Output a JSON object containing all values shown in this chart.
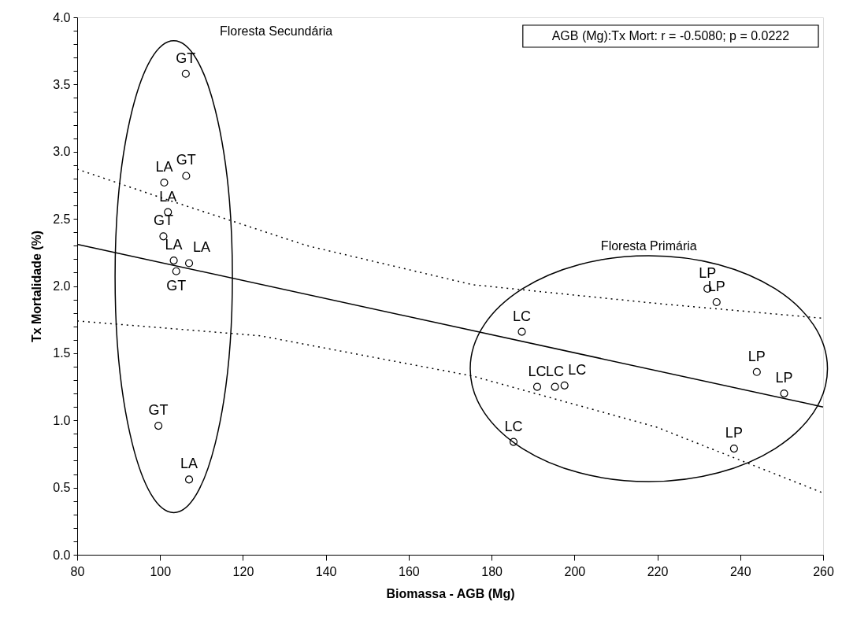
{
  "chart_data": {
    "type": "scatter",
    "xlabel": "Biomassa - AGB (Mg)",
    "ylabel": "Tx Mortalidade (%)",
    "annotations": [
      "Floresta Secundária",
      "Floresta Primária",
      "AGB (Mg):Tx Mort:   r = -0.5080; p = 0.0222"
    ],
    "xlim": [
      80,
      260
    ],
    "xticks": [
      80,
      100,
      120,
      140,
      160,
      180,
      200,
      220,
      240,
      260
    ],
    "ylim": [
      0,
      4
    ],
    "yticks": [
      {
        "value": 0,
        "label": "0.0"
      },
      {
        "value": 0.1,
        "label": null
      },
      {
        "value": 0.2,
        "label": null
      },
      {
        "value": 0.3,
        "label": null
      },
      {
        "value": 0.4,
        "label": null
      },
      {
        "value": 0.5,
        "label": "0.5"
      },
      {
        "value": 0.6,
        "label": null
      },
      {
        "value": 0.7,
        "label": null
      },
      {
        "value": 0.8,
        "label": null
      },
      {
        "value": 0.9,
        "label": null
      },
      {
        "value": 1,
        "label": "1.0"
      },
      {
        "value": 1.1,
        "label": null
      },
      {
        "value": 1.2,
        "label": null
      },
      {
        "value": 1.3,
        "label": null
      },
      {
        "value": 1.4,
        "label": null
      },
      {
        "value": 1.5,
        "label": "1.5"
      },
      {
        "value": 1.6,
        "label": null
      },
      {
        "value": 1.7,
        "label": null
      },
      {
        "value": 1.8,
        "label": null
      },
      {
        "value": 1.9,
        "label": null
      },
      {
        "value": 2,
        "label": "2.0"
      },
      {
        "value": 2.1,
        "label": null
      },
      {
        "value": 2.2,
        "label": null
      },
      {
        "value": 2.3,
        "label": null
      },
      {
        "value": 2.4,
        "label": null
      },
      {
        "value": 2.5,
        "label": "2.5"
      },
      {
        "value": 2.6,
        "label": null
      },
      {
        "value": 2.7,
        "label": null
      },
      {
        "value": 2.8,
        "label": null
      },
      {
        "value": 2.9,
        "label": null
      },
      {
        "value": 3,
        "label": "3.0"
      },
      {
        "value": 3.1,
        "label": null
      },
      {
        "value": 3.2,
        "label": null
      },
      {
        "value": 3.3,
        "label": null
      },
      {
        "value": 3.4,
        "label": null
      },
      {
        "value": 3.5,
        "label": "3.5"
      },
      {
        "value": 3.6,
        "label": null
      },
      {
        "value": 3.7,
        "label": null
      },
      {
        "value": 3.8,
        "label": null
      },
      {
        "value": 3.9,
        "label": null
      },
      {
        "value": 4,
        "label": "4.0"
      }
    ],
    "grid": false,
    "marker": "circle",
    "series": [
      {
        "type": "scatter",
        "color": "#000000",
        "x": [
          106.2,
          106.3,
          101.0,
          101.9,
          100.8,
          103.3,
          103.9,
          107.0,
          99.6,
          107.0
        ],
        "values": [
          3.58,
          2.82,
          2.77,
          2.55,
          2.37,
          2.19,
          2.11,
          2.17,
          0.96,
          0.56
        ],
        "value_labels": [
          "GT",
          "GT",
          "LA",
          "LA",
          "GT",
          "LA",
          "GT",
          "LA",
          "GT",
          "LA"
        ]
      },
      {
        "type": "scatter",
        "color": "#000000",
        "x": [
          187.3,
          191.0,
          195.3,
          197.6,
          185.3,
          232.1,
          234.3,
          244.0,
          250.6,
          238.5
        ],
        "values": [
          1.66,
          1.25,
          1.25,
          1.26,
          0.84,
          1.98,
          1.88,
          1.36,
          1.2,
          0.79
        ],
        "value_labels": [
          "LC",
          "LC",
          "LC",
          "LC",
          "LC",
          "LP",
          "LP",
          "LP",
          "LP",
          "LP"
        ]
      },
      {
        "type": "line",
        "color": "#000000",
        "line_style": "solid",
        "marker": "none",
        "x": [
          80,
          260
        ],
        "values": [
          2.31,
          1.1
        ]
      },
      {
        "type": "line",
        "color": "#000000",
        "line_style": "dotted",
        "marker": "none",
        "x": [
          80,
          100,
          135.5,
          175.4,
          220,
          260
        ],
        "values": [
          2.87,
          2.66,
          2.3,
          2.01,
          1.87,
          1.76
        ]
      },
      {
        "type": "line",
        "color": "#000000",
        "line_style": "dotted",
        "marker": "none",
        "x": [
          80,
          124.1,
          175.4,
          219.8,
          260
        ],
        "values": [
          1.74,
          1.63,
          1.33,
          0.95,
          0.46
        ]
      }
    ]
  }
}
